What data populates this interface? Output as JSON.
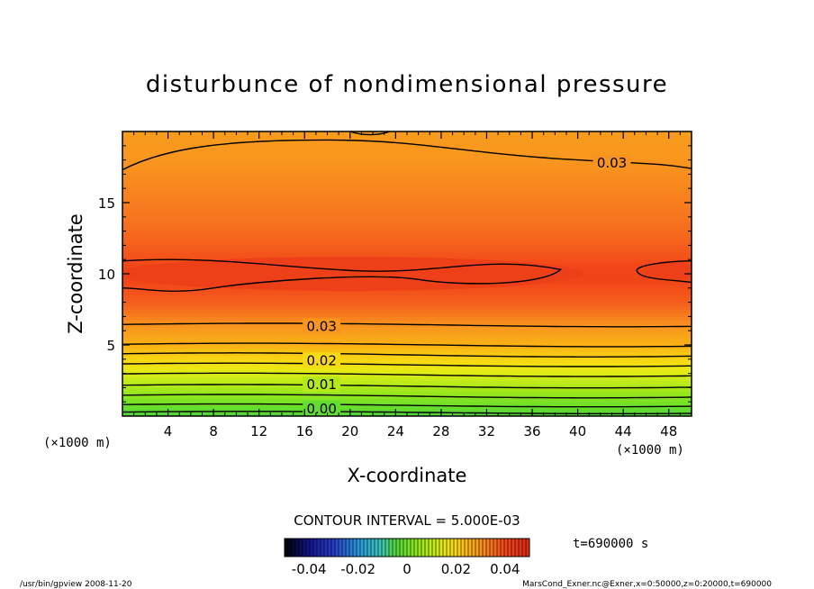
{
  "chart_data": {
    "type": "heatmap",
    "title": "disturbunce of nondimensional pressure",
    "xlabel": "X-coordinate",
    "ylabel": "Z-coordinate",
    "x_unit": "(×1000 m)",
    "y_unit": "(×1000 m)",
    "xlim": [
      0,
      50
    ],
    "ylim": [
      0,
      20
    ],
    "x_ticks": [
      4,
      8,
      12,
      16,
      20,
      24,
      28,
      32,
      36,
      40,
      44,
      48
    ],
    "y_ticks": [
      5,
      10,
      15
    ],
    "contour_interval_text": "CONTOUR INTERVAL = 5.000E-03",
    "contour_labels": [
      {
        "value": "0.03",
        "x": 43,
        "z": 17.8
      },
      {
        "value": "0.03",
        "x": 17.5,
        "z": 6.3
      },
      {
        "value": "0.02",
        "x": 17.5,
        "z": 3.9
      },
      {
        "value": "0.01",
        "x": 17.5,
        "z": 2.2
      },
      {
        "value": "0.00",
        "x": 17.5,
        "z": 0.5
      }
    ],
    "field_profile": [
      {
        "z": 0.0,
        "value": -0.005
      },
      {
        "z": 0.8,
        "value": 0.0
      },
      {
        "z": 1.6,
        "value": 0.005
      },
      {
        "z": 2.4,
        "value": 0.01
      },
      {
        "z": 3.2,
        "value": 0.015
      },
      {
        "z": 4.0,
        "value": 0.02
      },
      {
        "z": 4.9,
        "value": 0.025
      },
      {
        "z": 6.3,
        "value": 0.03
      },
      {
        "z": 8.0,
        "value": 0.037
      },
      {
        "z": 10.0,
        "value": 0.041
      },
      {
        "z": 12.0,
        "value": 0.037
      },
      {
        "z": 14.0,
        "value": 0.034
      },
      {
        "z": 16.0,
        "value": 0.032
      },
      {
        "z": 18.0,
        "value": 0.03
      },
      {
        "z": 20.0,
        "value": 0.029
      }
    ],
    "colorbar": {
      "min": -0.05,
      "max": 0.05,
      "tick_labels": [
        "-0.04",
        "-0.02",
        "0",
        "0.02",
        "0.04"
      ],
      "tick_values": [
        -0.04,
        -0.02,
        0,
        0.02,
        0.04
      ]
    }
  },
  "time_label": "t=690000 s",
  "footer_left": "/usr/bin/gpview   2008-11-20",
  "footer_right": "MarsCond_Exner.nc@Exner,x=0:50000,z=0:20000,t=690000"
}
